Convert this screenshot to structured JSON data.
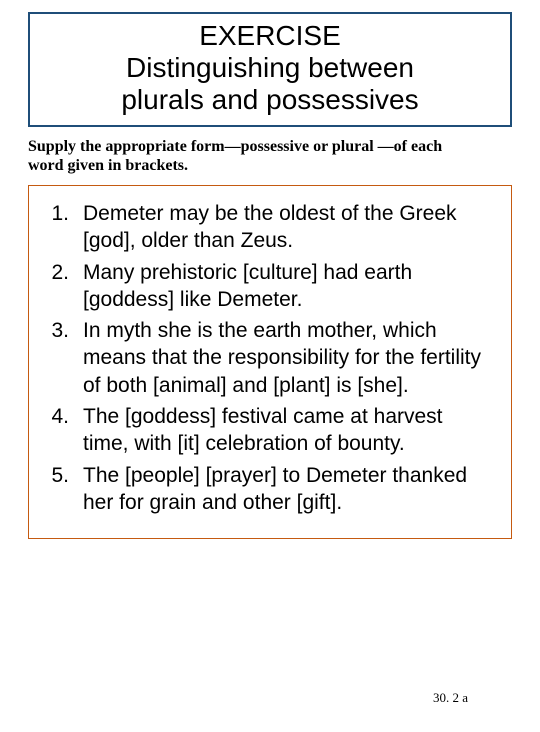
{
  "colors": {
    "title_border": "#1f4e79",
    "list_border": "#c55a11",
    "background": "#ffffff",
    "text": "#000000"
  },
  "title": {
    "line1": "EXERCISE",
    "line2": "Distinguishing between",
    "line3": "plurals and possessives",
    "fontsize": 28
  },
  "instructions": {
    "part1": "Supply the appropriate form—possessive or plural —of each",
    "part2": "word given in brackets.",
    "fontsize": 16
  },
  "items": [
    {
      "n": "1.",
      "text": "Demeter may be the oldest of the Greek [god], older than Zeus."
    },
    {
      "n": "2.",
      "text": "Many prehistoric [culture] had earth [goddess] like Demeter."
    },
    {
      "n": "3.",
      "text": "In myth she is the earth mother, which means that the responsibility for the fertility of both [animal] and [plant] is [she]."
    },
    {
      "n": "4.",
      "text": "The [goddess] festival came at harvest time, with [it] celebration of bounty."
    },
    {
      "n": "5.",
      "text": "The [people] [prayer] to Demeter thanked her for grain and other [gift]."
    }
  ],
  "list_fontsize": 21,
  "footer": "30. 2 a"
}
